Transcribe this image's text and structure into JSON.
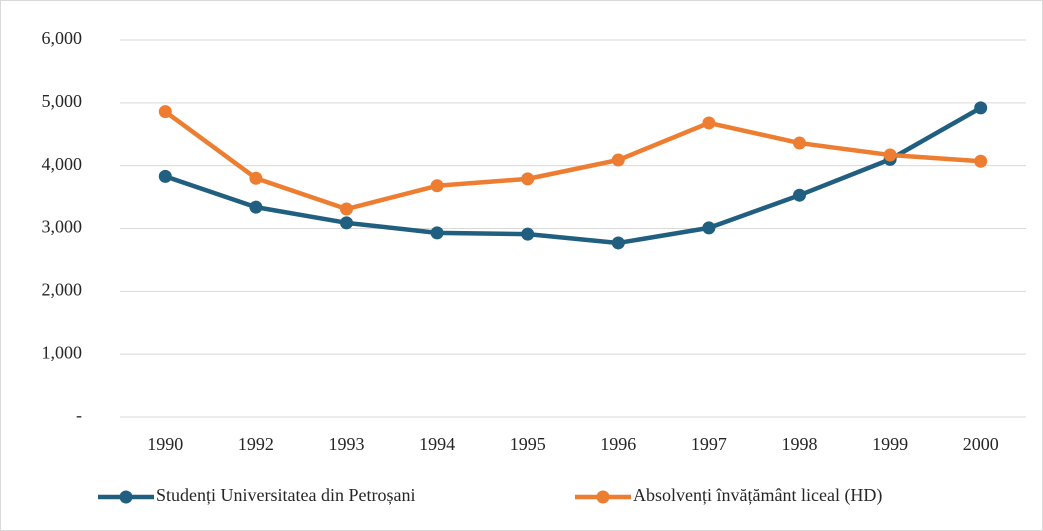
{
  "chart_data": {
    "type": "line",
    "categories": [
      "1990",
      "1992",
      "1993",
      "1994",
      "1995",
      "1996",
      "1997",
      "1998",
      "1999",
      "2000"
    ],
    "series": [
      {
        "name": "Studenți Universitatea din Petroșani",
        "color": "#215f80",
        "values": [
          3830,
          3340,
          3090,
          2930,
          2910,
          2770,
          3010,
          3530,
          4100,
          4920
        ]
      },
      {
        "name": "Absolvenți învățământ liceal (HD)",
        "color": "#ed7d31",
        "values": [
          4860,
          3800,
          3310,
          3680,
          3790,
          4090,
          4680,
          4360,
          4170,
          4070
        ]
      }
    ],
    "ylim": [
      0,
      6000
    ],
    "yticks": [
      {
        "value": 0,
        "label": "-"
      },
      {
        "value": 1000,
        "label": "1,000"
      },
      {
        "value": 2000,
        "label": "2,000"
      },
      {
        "value": 3000,
        "label": "3,000"
      },
      {
        "value": 4000,
        "label": "4,000"
      },
      {
        "value": 5000,
        "label": "5,000"
      },
      {
        "value": 6000,
        "label": "6,000"
      }
    ],
    "grid": true,
    "legend": "bottom"
  }
}
